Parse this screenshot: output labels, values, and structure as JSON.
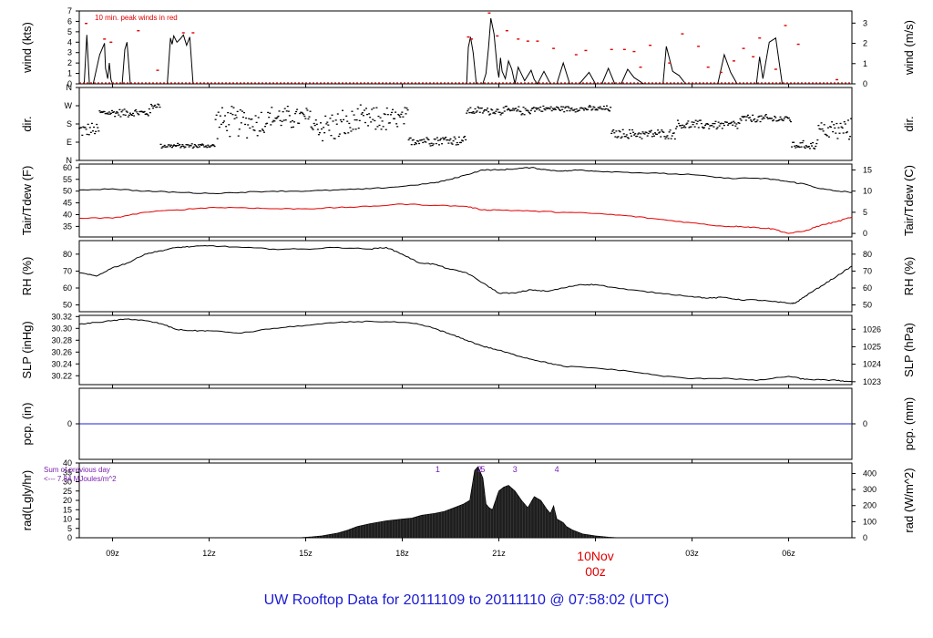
{
  "footer_title": "UW Rooftop Data for 20111109  to  20111110 @ 07:58:02  (UTC)",
  "colors": {
    "axis": "#000000",
    "line": "#000000",
    "dewpoint": "#e00000",
    "peak": "#e00000",
    "precip": "#2020d0",
    "annotation": "#7a1fb0",
    "date_label": "#e00000",
    "title": "#1a1ad4"
  },
  "x_axis": {
    "start_hour": 7.966,
    "end_hour": 31.966,
    "ticks": [
      {
        "hour": 9,
        "label": "09z"
      },
      {
        "hour": 12,
        "label": "12z"
      },
      {
        "hour": 15,
        "label": "15z"
      },
      {
        "hour": 18,
        "label": "18z"
      },
      {
        "hour": 21,
        "label": "21z"
      },
      {
        "hour": 24,
        "label": ""
      },
      {
        "hour": 27,
        "label": "03z"
      },
      {
        "hour": 30,
        "label": "06z"
      }
    ],
    "date_mark": {
      "hour": 24,
      "date": "10Nov",
      "time": "00z"
    }
  },
  "chart_data": [
    {
      "type": "line",
      "id": "wind",
      "ylabel": "wind (kts)",
      "ylabel_right": "wind (m/s)",
      "ylim": [
        0,
        7
      ],
      "y_ticks": [
        0,
        1,
        2,
        3,
        4,
        5,
        6,
        7
      ],
      "right_ticks": [
        {
          "v": 0,
          "label": "0"
        },
        {
          "v": 1.944,
          "label": "1"
        },
        {
          "v": 3.888,
          "label": "2"
        },
        {
          "v": 5.832,
          "label": "3"
        }
      ],
      "annotation": "10 min. peak winds in red",
      "series": [
        {
          "role": "wind",
          "x": [
            7.97,
            8.12,
            8.2,
            8.28,
            8.4,
            8.6,
            8.75,
            8.78,
            8.85,
            8.9,
            8.95,
            9.0,
            9.3,
            9.38,
            9.45,
            9.55,
            10.7,
            10.8,
            10.85,
            10.9,
            11.0,
            11.1,
            11.2,
            11.3,
            11.4,
            11.5,
            11.55,
            20.0,
            20.05,
            20.12,
            20.2,
            20.3,
            20.5,
            20.6,
            20.68,
            20.75,
            20.85,
            20.95,
            21.0,
            21.05,
            21.1,
            21.2,
            21.3,
            21.4,
            21.5,
            21.6,
            21.8,
            22.0,
            22.1,
            22.2,
            22.4,
            22.6,
            22.8,
            23.0,
            23.2,
            23.5,
            23.8,
            24.0,
            24.2,
            24.4,
            24.6,
            24.8,
            25.0,
            25.2,
            25.5,
            25.8,
            26.0,
            26.1,
            26.2,
            26.4,
            26.6,
            26.8,
            27.0,
            27.2,
            27.5,
            27.8,
            28.0,
            28.2,
            28.4,
            28.6,
            28.8,
            29.0,
            29.1,
            29.2,
            29.4,
            29.6,
            29.8,
            30.0,
            30.2,
            30.4,
            30.6,
            30.8,
            31.0,
            31.2,
            31.4,
            31.6,
            31.8,
            31.97
          ],
          "y": [
            0,
            0,
            4.7,
            0,
            0,
            2.8,
            3.9,
            1.5,
            0.5,
            2.0,
            0.4,
            0,
            0,
            3.3,
            4.0,
            0,
            0,
            4.4,
            3.8,
            4.6,
            4.0,
            4.3,
            4.7,
            3.7,
            4.5,
            0,
            0,
            0,
            3.5,
            4.5,
            3.0,
            0,
            0,
            1.0,
            3.5,
            6.3,
            4.8,
            1.5,
            0.6,
            2.5,
            1.2,
            0.5,
            2.2,
            1.4,
            0,
            1.6,
            0.3,
            1.3,
            0.4,
            0,
            1.2,
            0,
            0,
            2.0,
            0,
            0,
            1.1,
            0,
            0,
            1.5,
            0,
            0,
            1.4,
            0.6,
            0,
            0,
            0,
            0,
            3.6,
            1.2,
            0.8,
            0,
            0,
            0,
            0,
            0,
            2.8,
            1.1,
            0,
            0,
            0,
            0,
            2.6,
            0.5,
            4.0,
            4.4,
            0,
            0,
            0,
            0,
            0,
            0,
            0,
            0,
            0,
            0,
            0,
            0
          ]
        },
        {
          "role": "peak",
          "x": [
            8.18,
            8.75,
            8.95,
            9.8,
            10.4,
            11.2,
            11.5,
            20.05,
            20.15,
            20.7,
            20.95,
            21.25,
            21.6,
            21.9,
            22.2,
            22.7,
            23.4,
            23.7,
            24.5,
            24.9,
            25.2,
            25.4,
            25.7,
            26.3,
            26.7,
            27.2,
            27.5,
            27.9,
            28.3,
            28.6,
            28.9,
            29.1,
            29.6,
            29.9,
            30.3,
            31.5
          ],
          "y": [
            5.8,
            4.3,
            4.0,
            5.1,
            1.3,
            4.9,
            4.9,
            4.5,
            4.3,
            6.8,
            4.6,
            5.1,
            4.3,
            4.1,
            4.1,
            3.4,
            2.8,
            3.2,
            3.3,
            3.3,
            3.1,
            1.6,
            3.7,
            2.0,
            4.8,
            3.6,
            1.6,
            1.1,
            2.2,
            3.4,
            2.6,
            4.4,
            1.4,
            5.6,
            3.8,
            0.4
          ]
        }
      ]
    },
    {
      "type": "scatter",
      "id": "dir",
      "ylabel": "dir.",
      "ylabel_right": "dir.",
      "ylim": [
        0,
        360
      ],
      "y_ticks": [
        {
          "v": 0,
          "label": "N"
        },
        {
          "v": 90,
          "label": "E"
        },
        {
          "v": 180,
          "label": "S"
        },
        {
          "v": 270,
          "label": "W"
        },
        {
          "v": 360,
          "label": "N"
        }
      ],
      "series": [
        {
          "role": "direction",
          "segments": [
            {
              "from": 7.97,
              "to": 8.6,
              "center": 150,
              "spread": 60
            },
            {
              "from": 8.6,
              "to": 10.2,
              "center": 235,
              "spread": 35
            },
            {
              "from": 10.2,
              "to": 10.5,
              "center": 270,
              "spread": 25
            },
            {
              "from": 10.5,
              "to": 12.2,
              "center": 72,
              "spread": 20
            },
            {
              "from": 12.2,
              "to": 13.8,
              "center": 190,
              "spread": 130
            },
            {
              "from": 13.8,
              "to": 15.2,
              "center": 210,
              "spread": 100
            },
            {
              "from": 15.2,
              "to": 16.5,
              "center": 170,
              "spread": 140
            },
            {
              "from": 16.5,
              "to": 18.2,
              "center": 200,
              "spread": 110
            },
            {
              "from": 18.2,
              "to": 20.0,
              "center": 100,
              "spread": 45
            },
            {
              "from": 20.0,
              "to": 22.0,
              "center": 245,
              "spread": 35
            },
            {
              "from": 22.0,
              "to": 24.5,
              "center": 255,
              "spread": 25
            },
            {
              "from": 24.5,
              "to": 26.5,
              "center": 130,
              "spread": 40
            },
            {
              "from": 26.5,
              "to": 28.5,
              "center": 175,
              "spread": 40
            },
            {
              "from": 28.5,
              "to": 30.1,
              "center": 205,
              "spread": 35
            },
            {
              "from": 30.1,
              "to": 30.9,
              "center": 75,
              "spread": 35
            },
            {
              "from": 30.9,
              "to": 31.97,
              "center": 150,
              "spread": 90
            }
          ]
        }
      ]
    },
    {
      "type": "line",
      "id": "temp",
      "ylabel": "Tair/Tdew (F)",
      "ylabel_right": "Tair/Tdew (C)",
      "ylim": [
        30.5,
        61.5
      ],
      "y_ticks": [
        35,
        40,
        45,
        50,
        55,
        60
      ],
      "right_ticks": [
        {
          "v": 32,
          "label": "0"
        },
        {
          "v": 41,
          "label": "5"
        },
        {
          "v": 50,
          "label": "10"
        },
        {
          "v": 59,
          "label": "15"
        }
      ],
      "series": [
        {
          "role": "air_temperature",
          "x": [
            7.97,
            9,
            10,
            11,
            12,
            13,
            14,
            15,
            16,
            17,
            18,
            19,
            19.5,
            20,
            20.5,
            21,
            21.5,
            22,
            22.5,
            23,
            23.5,
            24,
            25,
            26,
            27,
            28,
            29,
            29.5,
            30,
            30.5,
            31,
            31.5,
            31.97
          ],
          "y": [
            50.5,
            51,
            50,
            49.5,
            49,
            49.5,
            50,
            50,
            50.5,
            51,
            52,
            53.5,
            55,
            57,
            59,
            59,
            59.5,
            60,
            59,
            58.5,
            59,
            58.5,
            58,
            57.5,
            57,
            55.5,
            55.5,
            55,
            54,
            53,
            51,
            50,
            49.5
          ]
        },
        {
          "role": "dewpoint",
          "x": [
            7.97,
            9,
            10,
            11,
            12,
            13,
            14,
            15,
            16,
            17,
            18,
            19,
            20,
            20.5,
            21,
            22,
            23,
            24,
            25,
            26,
            27,
            28,
            28.5,
            29,
            29.5,
            30,
            30.5,
            31,
            31.5,
            31.97
          ],
          "y": [
            38.5,
            38.5,
            41,
            42,
            43,
            43,
            42.5,
            42.5,
            43,
            43.5,
            44.5,
            44,
            43.5,
            42,
            42,
            41.5,
            41,
            40.5,
            39.5,
            38,
            36.5,
            35,
            35,
            34.5,
            34,
            32,
            33,
            35.5,
            37,
            39
          ]
        }
      ]
    },
    {
      "type": "line",
      "id": "rh",
      "ylabel": "RH (%)",
      "ylabel_right": "RH (%)",
      "ylim": [
        46,
        88
      ],
      "y_ticks": [
        50,
        60,
        70,
        80
      ],
      "right_ticks": [
        {
          "v": 50,
          "label": "50"
        },
        {
          "v": 60,
          "label": "60"
        },
        {
          "v": 70,
          "label": "70"
        },
        {
          "v": 80,
          "label": "80"
        }
      ],
      "series": [
        {
          "role": "relative_humidity",
          "x": [
            7.97,
            8.5,
            9,
            9.5,
            10,
            10.5,
            11,
            11.5,
            12,
            13,
            14,
            15,
            16,
            17,
            17.5,
            18,
            18.5,
            19,
            19.5,
            20,
            20.5,
            21,
            21.5,
            22,
            22.5,
            23,
            23.5,
            24,
            25,
            26,
            27,
            27.5,
            28,
            28.5,
            29,
            29.5,
            30,
            30.2,
            30.5,
            31,
            31.5,
            31.97
          ],
          "y": [
            69,
            67,
            72,
            75,
            80,
            82,
            84,
            84.5,
            85,
            84,
            83,
            83,
            84,
            83,
            84,
            80,
            75,
            74,
            71,
            69,
            63,
            57,
            57,
            59,
            58,
            60,
            62,
            62,
            59,
            57,
            55,
            54,
            54.5,
            53,
            53,
            52,
            51,
            51,
            55,
            61,
            67,
            73
          ]
        }
      ]
    },
    {
      "type": "line",
      "id": "slp",
      "ylabel": "SLP (inHg)",
      "ylabel_right": "SLP (hPa)",
      "ylim": [
        30.205,
        30.322
      ],
      "y_ticks": [
        {
          "v": 30.22,
          "label": "30.22"
        },
        {
          "v": 30.24,
          "label": "30.24"
        },
        {
          "v": 30.26,
          "label": "30.26"
        },
        {
          "v": 30.28,
          "label": "30.28"
        },
        {
          "v": 30.3,
          "label": "30.30"
        },
        {
          "v": 30.32,
          "label": "30.32"
        }
      ],
      "right_ticks": [
        {
          "v": 30.2099,
          "label": "1023"
        },
        {
          "v": 30.2395,
          "label": "1024"
        },
        {
          "v": 30.269,
          "label": "1025"
        },
        {
          "v": 30.2985,
          "label": "1026"
        }
      ],
      "series": [
        {
          "role": "sea_level_pressure",
          "x": [
            7.97,
            8.5,
            9,
            9.5,
            10,
            10.5,
            11,
            11.5,
            12,
            13,
            14,
            15,
            16,
            17,
            18,
            18.5,
            19,
            19.5,
            20,
            20.5,
            21,
            21.5,
            22,
            22.5,
            23,
            24,
            25,
            26,
            27,
            28,
            29,
            30,
            30.5,
            31,
            31.5,
            31.97
          ],
          "y": [
            30.307,
            30.31,
            30.313,
            30.316,
            30.313,
            30.308,
            30.298,
            30.296,
            30.296,
            30.292,
            30.3,
            30.305,
            30.31,
            30.312,
            30.31,
            30.307,
            30.3,
            30.29,
            30.28,
            30.27,
            30.263,
            30.255,
            30.248,
            30.242,
            30.236,
            30.233,
            30.228,
            30.22,
            30.215,
            30.216,
            30.212,
            30.219,
            30.214,
            30.213,
            30.212,
            30.21
          ]
        }
      ]
    },
    {
      "type": "line",
      "id": "pcp",
      "ylabel": "pcp. (in)",
      "ylabel_right": "pcp. (mm)",
      "ylim": [
        -1,
        1
      ],
      "y_ticks": [
        {
          "v": 0,
          "label": "0"
        }
      ],
      "right_ticks": [
        {
          "v": 0,
          "label": "0"
        }
      ],
      "series": [
        {
          "role": "precipitation",
          "x": [
            7.97,
            31.97
          ],
          "y": [
            0,
            0
          ]
        }
      ]
    },
    {
      "type": "area",
      "id": "rad",
      "ylabel": "rad(Lgly/hr)",
      "ylabel_right": "rad (W/m^2)",
      "ylim": [
        0,
        40
      ],
      "y_ticks": [
        0,
        5,
        10,
        15,
        20,
        25,
        30,
        35,
        40
      ],
      "right_ticks": [
        {
          "v": 0,
          "label": "0"
        },
        {
          "v": 8.6,
          "label": "100"
        },
        {
          "v": 17.2,
          "label": "200"
        },
        {
          "v": 25.8,
          "label": "300"
        },
        {
          "v": 34.4,
          "label": "400"
        }
      ],
      "annotation_lines": [
        "Sum of previous day",
        "<--- 7.84 MJoules/m^2"
      ],
      "markers": [
        {
          "hour": 19.1,
          "label": "1"
        },
        {
          "hour": 20.4,
          "label": "2"
        },
        {
          "hour": 20.5,
          "label": "5"
        },
        {
          "hour": 21.5,
          "label": "3"
        },
        {
          "hour": 22.8,
          "label": "4"
        }
      ],
      "series": [
        {
          "role": "solar_radiation",
          "x": [
            14.8,
            15.2,
            15.5,
            16,
            16.3,
            16.6,
            17,
            17.5,
            18,
            18.3,
            18.6,
            19,
            19.3,
            19.6,
            19.9,
            20.1,
            20.25,
            20.35,
            20.5,
            20.6,
            20.7,
            20.8,
            20.9,
            21.0,
            21.15,
            21.3,
            21.5,
            21.7,
            21.9,
            22.1,
            22.3,
            22.5,
            22.6,
            22.7,
            22.8,
            22.9,
            23.0,
            23.1,
            23.3,
            23.6,
            24.0,
            24.4,
            24.7
          ],
          "y": [
            0,
            0.5,
            1,
            2.5,
            4,
            6,
            7.5,
            9,
            10,
            10.5,
            12,
            13,
            14,
            16,
            18,
            20,
            36,
            38,
            32,
            18,
            16,
            15,
            20,
            25,
            27,
            28,
            25,
            20,
            16,
            22,
            20,
            15,
            13,
            17,
            10,
            9,
            8,
            6,
            4,
            2,
            1,
            0.3,
            0
          ]
        }
      ]
    }
  ]
}
